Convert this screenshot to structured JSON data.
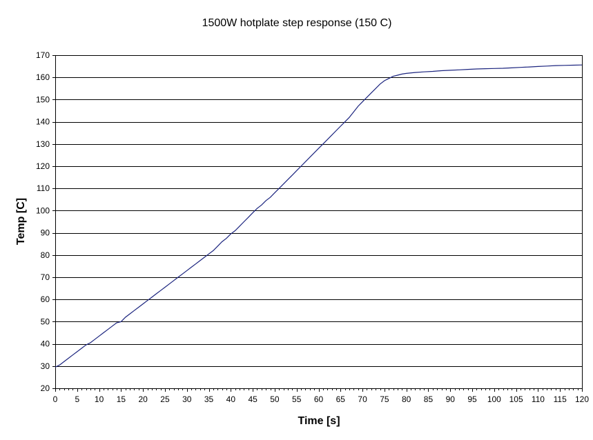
{
  "chart_data": {
    "type": "line",
    "title": "1500W hotplate step response (150 C)",
    "xlabel": "Time [s]",
    "ylabel": "Temp [C]",
    "xlim": [
      0,
      120
    ],
    "ylim": [
      20,
      170
    ],
    "x_ticks": [
      0,
      5,
      10,
      15,
      20,
      25,
      30,
      35,
      40,
      45,
      50,
      55,
      60,
      65,
      70,
      75,
      80,
      85,
      90,
      95,
      100,
      105,
      110,
      115,
      120
    ],
    "y_ticks": [
      20,
      30,
      40,
      50,
      60,
      70,
      80,
      90,
      100,
      110,
      120,
      130,
      140,
      150,
      160,
      170
    ],
    "grid": "horizontal",
    "legend": "none",
    "series_color": "#1a237e",
    "series": [
      {
        "x": [
          0,
          1,
          2,
          3,
          4,
          5,
          6,
          7,
          8,
          9,
          10,
          11,
          12,
          13,
          14,
          15,
          16,
          17,
          18,
          19,
          20,
          21,
          22,
          23,
          24,
          25,
          26,
          27,
          28,
          29,
          30,
          31,
          32,
          33,
          34,
          35,
          36,
          37,
          38,
          39,
          40,
          41,
          42,
          43,
          44,
          45,
          46,
          47,
          48,
          49,
          50,
          51,
          52,
          53,
          54,
          55,
          56,
          57,
          58,
          59,
          60,
          61,
          62,
          63,
          64,
          65,
          66,
          67,
          68,
          69,
          70,
          71,
          72,
          73,
          74,
          75,
          76,
          77,
          78,
          79,
          80,
          82,
          84,
          86,
          88,
          90,
          92,
          94,
          96,
          98,
          100,
          102,
          104,
          106,
          108,
          110,
          112,
          114,
          116,
          118,
          120
        ],
        "y": [
          29.5,
          30.5,
          32,
          33.5,
          35,
          36.5,
          38,
          39.5,
          40.5,
          42,
          43.5,
          45,
          46.5,
          48,
          49.5,
          50,
          52,
          53.5,
          55,
          56.5,
          58,
          59.5,
          61,
          62.5,
          64,
          65.5,
          67,
          68.5,
          70,
          71.5,
          73,
          74.5,
          76,
          77.5,
          79,
          80.5,
          82,
          84,
          86,
          87.5,
          89.5,
          91,
          93,
          95,
          97,
          99,
          101,
          102.5,
          104.5,
          106,
          108,
          110,
          112,
          114,
          116,
          118,
          120,
          122,
          124,
          126,
          128,
          130,
          132,
          134,
          136,
          138,
          140,
          142,
          144.5,
          147,
          149,
          151,
          153,
          155,
          157,
          158.5,
          159.5,
          160.5,
          161,
          161.5,
          161.8,
          162.2,
          162.5,
          162.7,
          163,
          163.2,
          163.4,
          163.6,
          163.8,
          163.9,
          164,
          164.1,
          164.3,
          164.5,
          164.7,
          164.9,
          165.1,
          165.3,
          165.4,
          165.5,
          165.6
        ]
      }
    ]
  }
}
